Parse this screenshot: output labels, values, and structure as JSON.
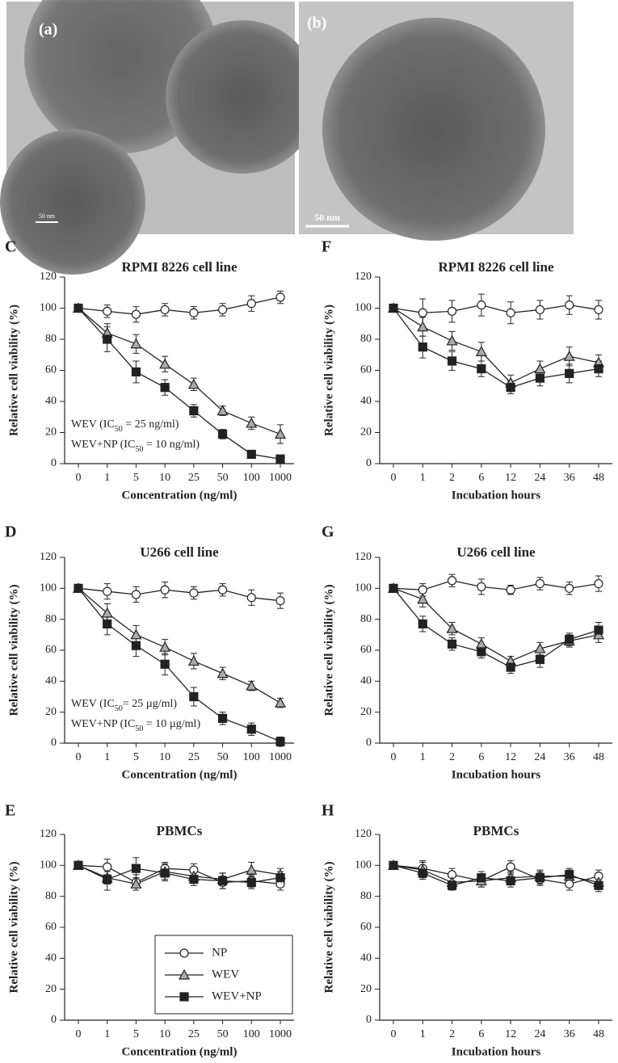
{
  "images": [
    {
      "label": "(a)",
      "scale_bar": "50 nm"
    },
    {
      "label": "(b)",
      "scale_bar": "50 nm"
    }
  ],
  "chart_data": [
    {
      "type": "line",
      "panel": "C",
      "title": "RPMI 8226 cell line",
      "x_label": "Concentration (ng/ml)",
      "y_label": "Relative cell viability (%)",
      "categories": [
        "0",
        "1",
        "5",
        "10",
        "25",
        "50",
        "100",
        "1000"
      ],
      "ylim": [
        0,
        120
      ],
      "yticks": [
        0,
        20,
        40,
        60,
        80,
        100,
        120
      ],
      "legend": "none",
      "annotations": [
        [
          "WEV (IC",
          "50",
          " = 25 ng/ml)"
        ],
        [
          "WEV+NP (IC",
          "50",
          " = 10 ng/ml)"
        ]
      ],
      "series": [
        {
          "marker": "circle",
          "color": "#ffffff",
          "values": [
            100,
            98,
            96,
            99,
            97,
            99,
            103,
            107
          ],
          "errors": [
            2,
            4,
            5,
            4,
            4,
            4,
            5,
            4
          ]
        },
        {
          "marker": "triangle",
          "color": "#aaaaaa",
          "values": [
            100,
            84,
            77,
            64,
            51,
            34,
            26,
            19
          ],
          "errors": [
            2,
            6,
            6,
            5,
            4,
            3,
            4,
            6
          ]
        },
        {
          "marker": "square",
          "color": "#222222",
          "values": [
            100,
            80,
            59,
            49,
            34,
            19,
            6,
            3
          ],
          "errors": [
            2,
            8,
            7,
            5,
            4,
            3,
            2,
            2
          ]
        }
      ]
    },
    {
      "type": "line",
      "panel": "F",
      "title": "RPMI 8226 cell line",
      "x_label": "Incubation hours",
      "y_label": "Relative cell viability (%)",
      "categories": [
        "0",
        "1",
        "2",
        "6",
        "12",
        "24",
        "36",
        "48"
      ],
      "ylim": [
        0,
        120
      ],
      "yticks": [
        0,
        20,
        40,
        60,
        80,
        100,
        120
      ],
      "legend": "none",
      "series": [
        {
          "marker": "circle",
          "color": "#ffffff",
          "values": [
            100,
            97,
            98,
            102,
            97,
            99,
            102,
            99
          ],
          "errors": [
            2,
            9,
            7,
            7,
            7,
            6,
            6,
            6
          ]
        },
        {
          "marker": "triangle",
          "color": "#aaaaaa",
          "values": [
            100,
            88,
            79,
            72,
            52,
            61,
            69,
            65
          ],
          "errors": [
            2,
            6,
            6,
            6,
            5,
            5,
            6,
            5
          ]
        },
        {
          "marker": "square",
          "color": "#222222",
          "values": [
            100,
            75,
            66,
            61,
            49,
            55,
            58,
            61
          ],
          "errors": [
            2,
            7,
            6,
            5,
            4,
            5,
            6,
            5
          ]
        }
      ]
    },
    {
      "type": "line",
      "panel": "D",
      "title": "U266 cell line",
      "x_label": "Concentration (ng/ml)",
      "y_label": "Relative cell viability (%)",
      "categories": [
        "0",
        "1",
        "5",
        "10",
        "25",
        "50",
        "100",
        "1000"
      ],
      "ylim": [
        0,
        120
      ],
      "yticks": [
        0,
        20,
        40,
        60,
        80,
        100,
        120
      ],
      "legend": "none",
      "annotations": [
        [
          "WEV (IC",
          "50",
          "= 25 µg/ml)"
        ],
        [
          "WEV+NP (IC",
          "50",
          " = 10 µg/ml)"
        ]
      ],
      "series": [
        {
          "marker": "circle",
          "color": "#ffffff",
          "values": [
            100,
            98,
            96,
            99,
            97,
            99,
            94,
            92
          ],
          "errors": [
            2,
            5,
            5,
            5,
            4,
            4,
            5,
            5
          ]
        },
        {
          "marker": "triangle",
          "color": "#aaaaaa",
          "values": [
            100,
            84,
            70,
            62,
            53,
            45,
            37,
            26
          ],
          "errors": [
            2,
            6,
            6,
            5,
            5,
            4,
            3,
            3
          ]
        },
        {
          "marker": "square",
          "color": "#222222",
          "values": [
            100,
            77,
            63,
            51,
            30,
            16,
            9,
            1
          ],
          "errors": [
            2,
            7,
            7,
            7,
            6,
            4,
            4,
            3
          ]
        }
      ]
    },
    {
      "type": "line",
      "panel": "G",
      "title": "U266 cell line",
      "x_label": "Incubation hours",
      "y_label": "Relative cell viability (%)",
      "categories": [
        "0",
        "1",
        "2",
        "6",
        "12",
        "24",
        "36",
        "48"
      ],
      "ylim": [
        0,
        120
      ],
      "yticks": [
        0,
        20,
        40,
        60,
        80,
        100,
        120
      ],
      "legend": "none",
      "series": [
        {
          "marker": "circle",
          "color": "#ffffff",
          "values": [
            100,
            99,
            105,
            101,
            99,
            103,
            100,
            103
          ],
          "errors": [
            2,
            4,
            4,
            5,
            3,
            4,
            4,
            5
          ]
        },
        {
          "marker": "triangle",
          "color": "#aaaaaa",
          "values": [
            100,
            93,
            74,
            64,
            53,
            61,
            66,
            70
          ],
          "errors": [
            2,
            5,
            4,
            4,
            3,
            4,
            4,
            5
          ]
        },
        {
          "marker": "square",
          "color": "#222222",
          "values": [
            100,
            77,
            64,
            59,
            49,
            54,
            67,
            73
          ],
          "errors": [
            2,
            5,
            4,
            4,
            4,
            5,
            4,
            5
          ]
        }
      ]
    },
    {
      "type": "line",
      "panel": "E",
      "title": "PBMCs",
      "x_label": "Concentration (ng/ml)",
      "y_label": "Relative cell viability (%)",
      "categories": [
        "0",
        "1",
        "5",
        "10",
        "25",
        "50",
        "100",
        "1000"
      ],
      "ylim": [
        0,
        120
      ],
      "yticks": [
        0,
        20,
        40,
        60,
        80,
        100,
        120
      ],
      "legend": "lower right",
      "series": [
        {
          "name": "NP",
          "marker": "circle",
          "color": "#ffffff",
          "values": [
            100,
            99,
            89,
            98,
            97,
            89,
            90,
            88
          ],
          "errors": [
            2,
            5,
            5,
            4,
            4,
            4,
            4,
            4
          ]
        },
        {
          "name": "WEV",
          "marker": "triangle",
          "color": "#aaaaaa",
          "values": [
            100,
            92,
            88,
            96,
            93,
            91,
            97,
            94
          ],
          "errors": [
            2,
            4,
            4,
            5,
            4,
            4,
            5,
            4
          ]
        },
        {
          "name": "WEV+NP",
          "marker": "square",
          "color": "#222222",
          "values": [
            100,
            91,
            98,
            95,
            91,
            90,
            89,
            92
          ],
          "errors": [
            2,
            7,
            7,
            5,
            4,
            5,
            4,
            4
          ]
        }
      ]
    },
    {
      "type": "line",
      "panel": "H",
      "title": "PBMCs",
      "x_label": "Incubation hours",
      "y_label": "Relative cell viability (%)",
      "categories": [
        "0",
        "1",
        "2",
        "6",
        "12",
        "24",
        "36",
        "48"
      ],
      "ylim": [
        0,
        120
      ],
      "yticks": [
        0,
        20,
        40,
        60,
        80,
        100,
        120
      ],
      "legend": "none",
      "series": [
        {
          "marker": "circle",
          "color": "#ffffff",
          "values": [
            100,
            98,
            94,
            90,
            99,
            91,
            88,
            93
          ],
          "errors": [
            2,
            5,
            4,
            4,
            4,
            4,
            4,
            4
          ]
        },
        {
          "marker": "triangle",
          "color": "#aaaaaa",
          "values": [
            100,
            97,
            89,
            90,
            92,
            93,
            93,
            89
          ],
          "errors": [
            2,
            5,
            4,
            4,
            4,
            4,
            4,
            4
          ]
        },
        {
          "marker": "square",
          "color": "#222222",
          "values": [
            100,
            95,
            87,
            92,
            90,
            92,
            94,
            87
          ],
          "errors": [
            2,
            4,
            3,
            4,
            4,
            4,
            4,
            4
          ]
        }
      ]
    }
  ]
}
